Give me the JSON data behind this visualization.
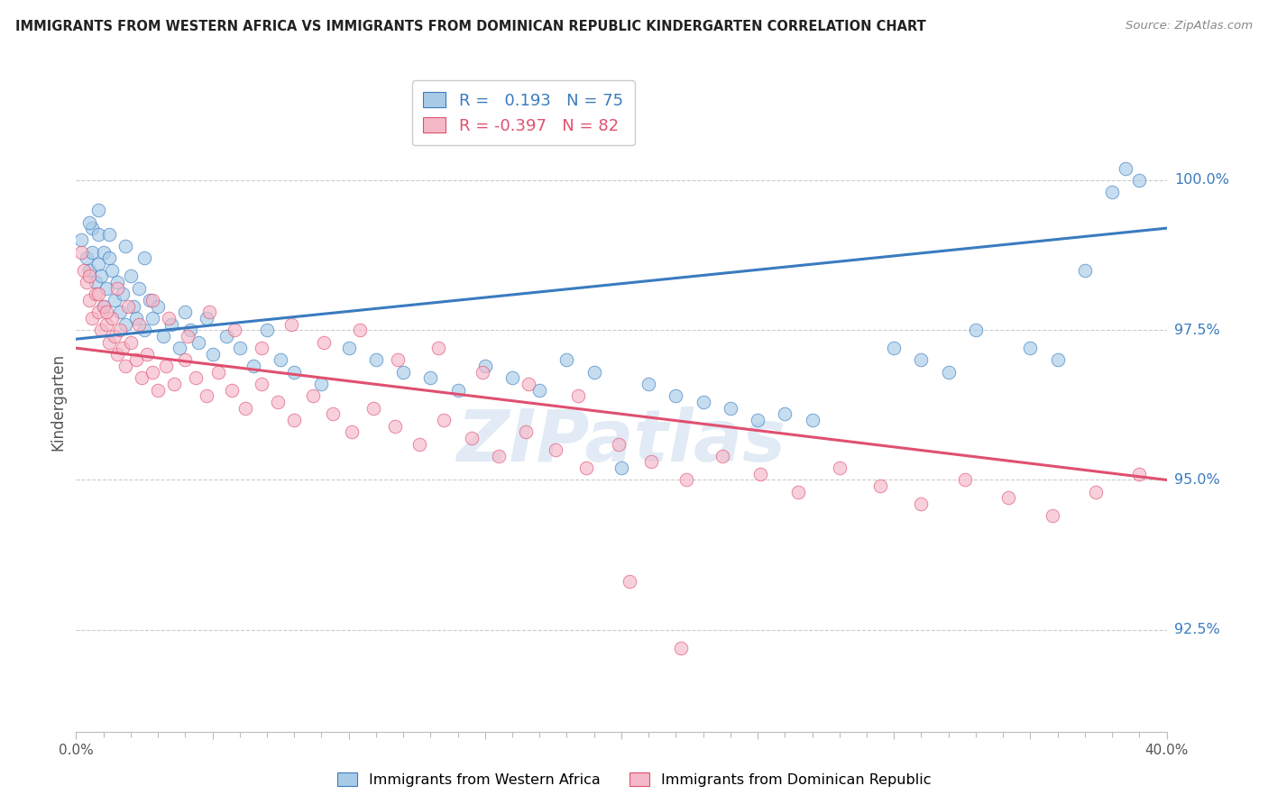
{
  "title": "IMMIGRANTS FROM WESTERN AFRICA VS IMMIGRANTS FROM DOMINICAN REPUBLIC KINDERGARTEN CORRELATION CHART",
  "source": "Source: ZipAtlas.com",
  "ylabel": "Kindergarten",
  "ytick_labels": [
    "92.5%",
    "95.0%",
    "97.5%",
    "100.0%"
  ],
  "ytick_values": [
    0.925,
    0.95,
    0.975,
    1.0
  ],
  "xlim": [
    0.0,
    0.4
  ],
  "ylim": [
    0.908,
    1.018
  ],
  "legend_blue_r": "0.193",
  "legend_blue_n": "75",
  "legend_pink_r": "-0.397",
  "legend_pink_n": "82",
  "blue_color": "#a8cce8",
  "pink_color": "#f5b8c8",
  "blue_line_color": "#3a7bbf",
  "pink_line_color": "#e05070",
  "watermark": "ZIPatlas",
  "blue_scatter_x": [
    0.002,
    0.004,
    0.005,
    0.006,
    0.006,
    0.007,
    0.008,
    0.008,
    0.009,
    0.01,
    0.01,
    0.011,
    0.012,
    0.013,
    0.014,
    0.015,
    0.016,
    0.017,
    0.018,
    0.02,
    0.021,
    0.022,
    0.023,
    0.025,
    0.027,
    0.028,
    0.03,
    0.032,
    0.035,
    0.038,
    0.04,
    0.042,
    0.045,
    0.048,
    0.05,
    0.055,
    0.06,
    0.065,
    0.07,
    0.075,
    0.08,
    0.09,
    0.1,
    0.11,
    0.12,
    0.13,
    0.14,
    0.15,
    0.16,
    0.17,
    0.18,
    0.19,
    0.2,
    0.21,
    0.22,
    0.23,
    0.24,
    0.25,
    0.26,
    0.27,
    0.3,
    0.31,
    0.32,
    0.33,
    0.35,
    0.36,
    0.37,
    0.38,
    0.385,
    0.39,
    0.005,
    0.008,
    0.012,
    0.018,
    0.025
  ],
  "blue_scatter_y": [
    0.99,
    0.987,
    0.985,
    0.992,
    0.988,
    0.983,
    0.986,
    0.991,
    0.984,
    0.979,
    0.988,
    0.982,
    0.987,
    0.985,
    0.98,
    0.983,
    0.978,
    0.981,
    0.976,
    0.984,
    0.979,
    0.977,
    0.982,
    0.975,
    0.98,
    0.977,
    0.979,
    0.974,
    0.976,
    0.972,
    0.978,
    0.975,
    0.973,
    0.977,
    0.971,
    0.974,
    0.972,
    0.969,
    0.975,
    0.97,
    0.968,
    0.966,
    0.972,
    0.97,
    0.968,
    0.967,
    0.965,
    0.969,
    0.967,
    0.965,
    0.97,
    0.968,
    0.952,
    0.966,
    0.964,
    0.963,
    0.962,
    0.96,
    0.961,
    0.96,
    0.972,
    0.97,
    0.968,
    0.975,
    0.972,
    0.97,
    0.985,
    0.998,
    1.002,
    1.0,
    0.993,
    0.995,
    0.991,
    0.989,
    0.987
  ],
  "pink_scatter_x": [
    0.002,
    0.003,
    0.004,
    0.005,
    0.006,
    0.007,
    0.008,
    0.009,
    0.01,
    0.011,
    0.012,
    0.013,
    0.014,
    0.015,
    0.016,
    0.017,
    0.018,
    0.02,
    0.022,
    0.024,
    0.026,
    0.028,
    0.03,
    0.033,
    0.036,
    0.04,
    0.044,
    0.048,
    0.052,
    0.057,
    0.062,
    0.068,
    0.074,
    0.08,
    0.087,
    0.094,
    0.101,
    0.109,
    0.117,
    0.126,
    0.135,
    0.145,
    0.155,
    0.165,
    0.176,
    0.187,
    0.199,
    0.211,
    0.224,
    0.237,
    0.251,
    0.265,
    0.28,
    0.295,
    0.31,
    0.326,
    0.342,
    0.358,
    0.374,
    0.39,
    0.005,
    0.008,
    0.011,
    0.015,
    0.019,
    0.023,
    0.028,
    0.034,
    0.041,
    0.049,
    0.058,
    0.068,
    0.079,
    0.091,
    0.104,
    0.118,
    0.133,
    0.149,
    0.166,
    0.184,
    0.203,
    0.222
  ],
  "pink_scatter_y": [
    0.988,
    0.985,
    0.983,
    0.98,
    0.977,
    0.981,
    0.978,
    0.975,
    0.979,
    0.976,
    0.973,
    0.977,
    0.974,
    0.971,
    0.975,
    0.972,
    0.969,
    0.973,
    0.97,
    0.967,
    0.971,
    0.968,
    0.965,
    0.969,
    0.966,
    0.97,
    0.967,
    0.964,
    0.968,
    0.965,
    0.962,
    0.966,
    0.963,
    0.96,
    0.964,
    0.961,
    0.958,
    0.962,
    0.959,
    0.956,
    0.96,
    0.957,
    0.954,
    0.958,
    0.955,
    0.952,
    0.956,
    0.953,
    0.95,
    0.954,
    0.951,
    0.948,
    0.952,
    0.949,
    0.946,
    0.95,
    0.947,
    0.944,
    0.948,
    0.951,
    0.984,
    0.981,
    0.978,
    0.982,
    0.979,
    0.976,
    0.98,
    0.977,
    0.974,
    0.978,
    0.975,
    0.972,
    0.976,
    0.973,
    0.975,
    0.97,
    0.972,
    0.968,
    0.966,
    0.964,
    0.933,
    0.922
  ]
}
